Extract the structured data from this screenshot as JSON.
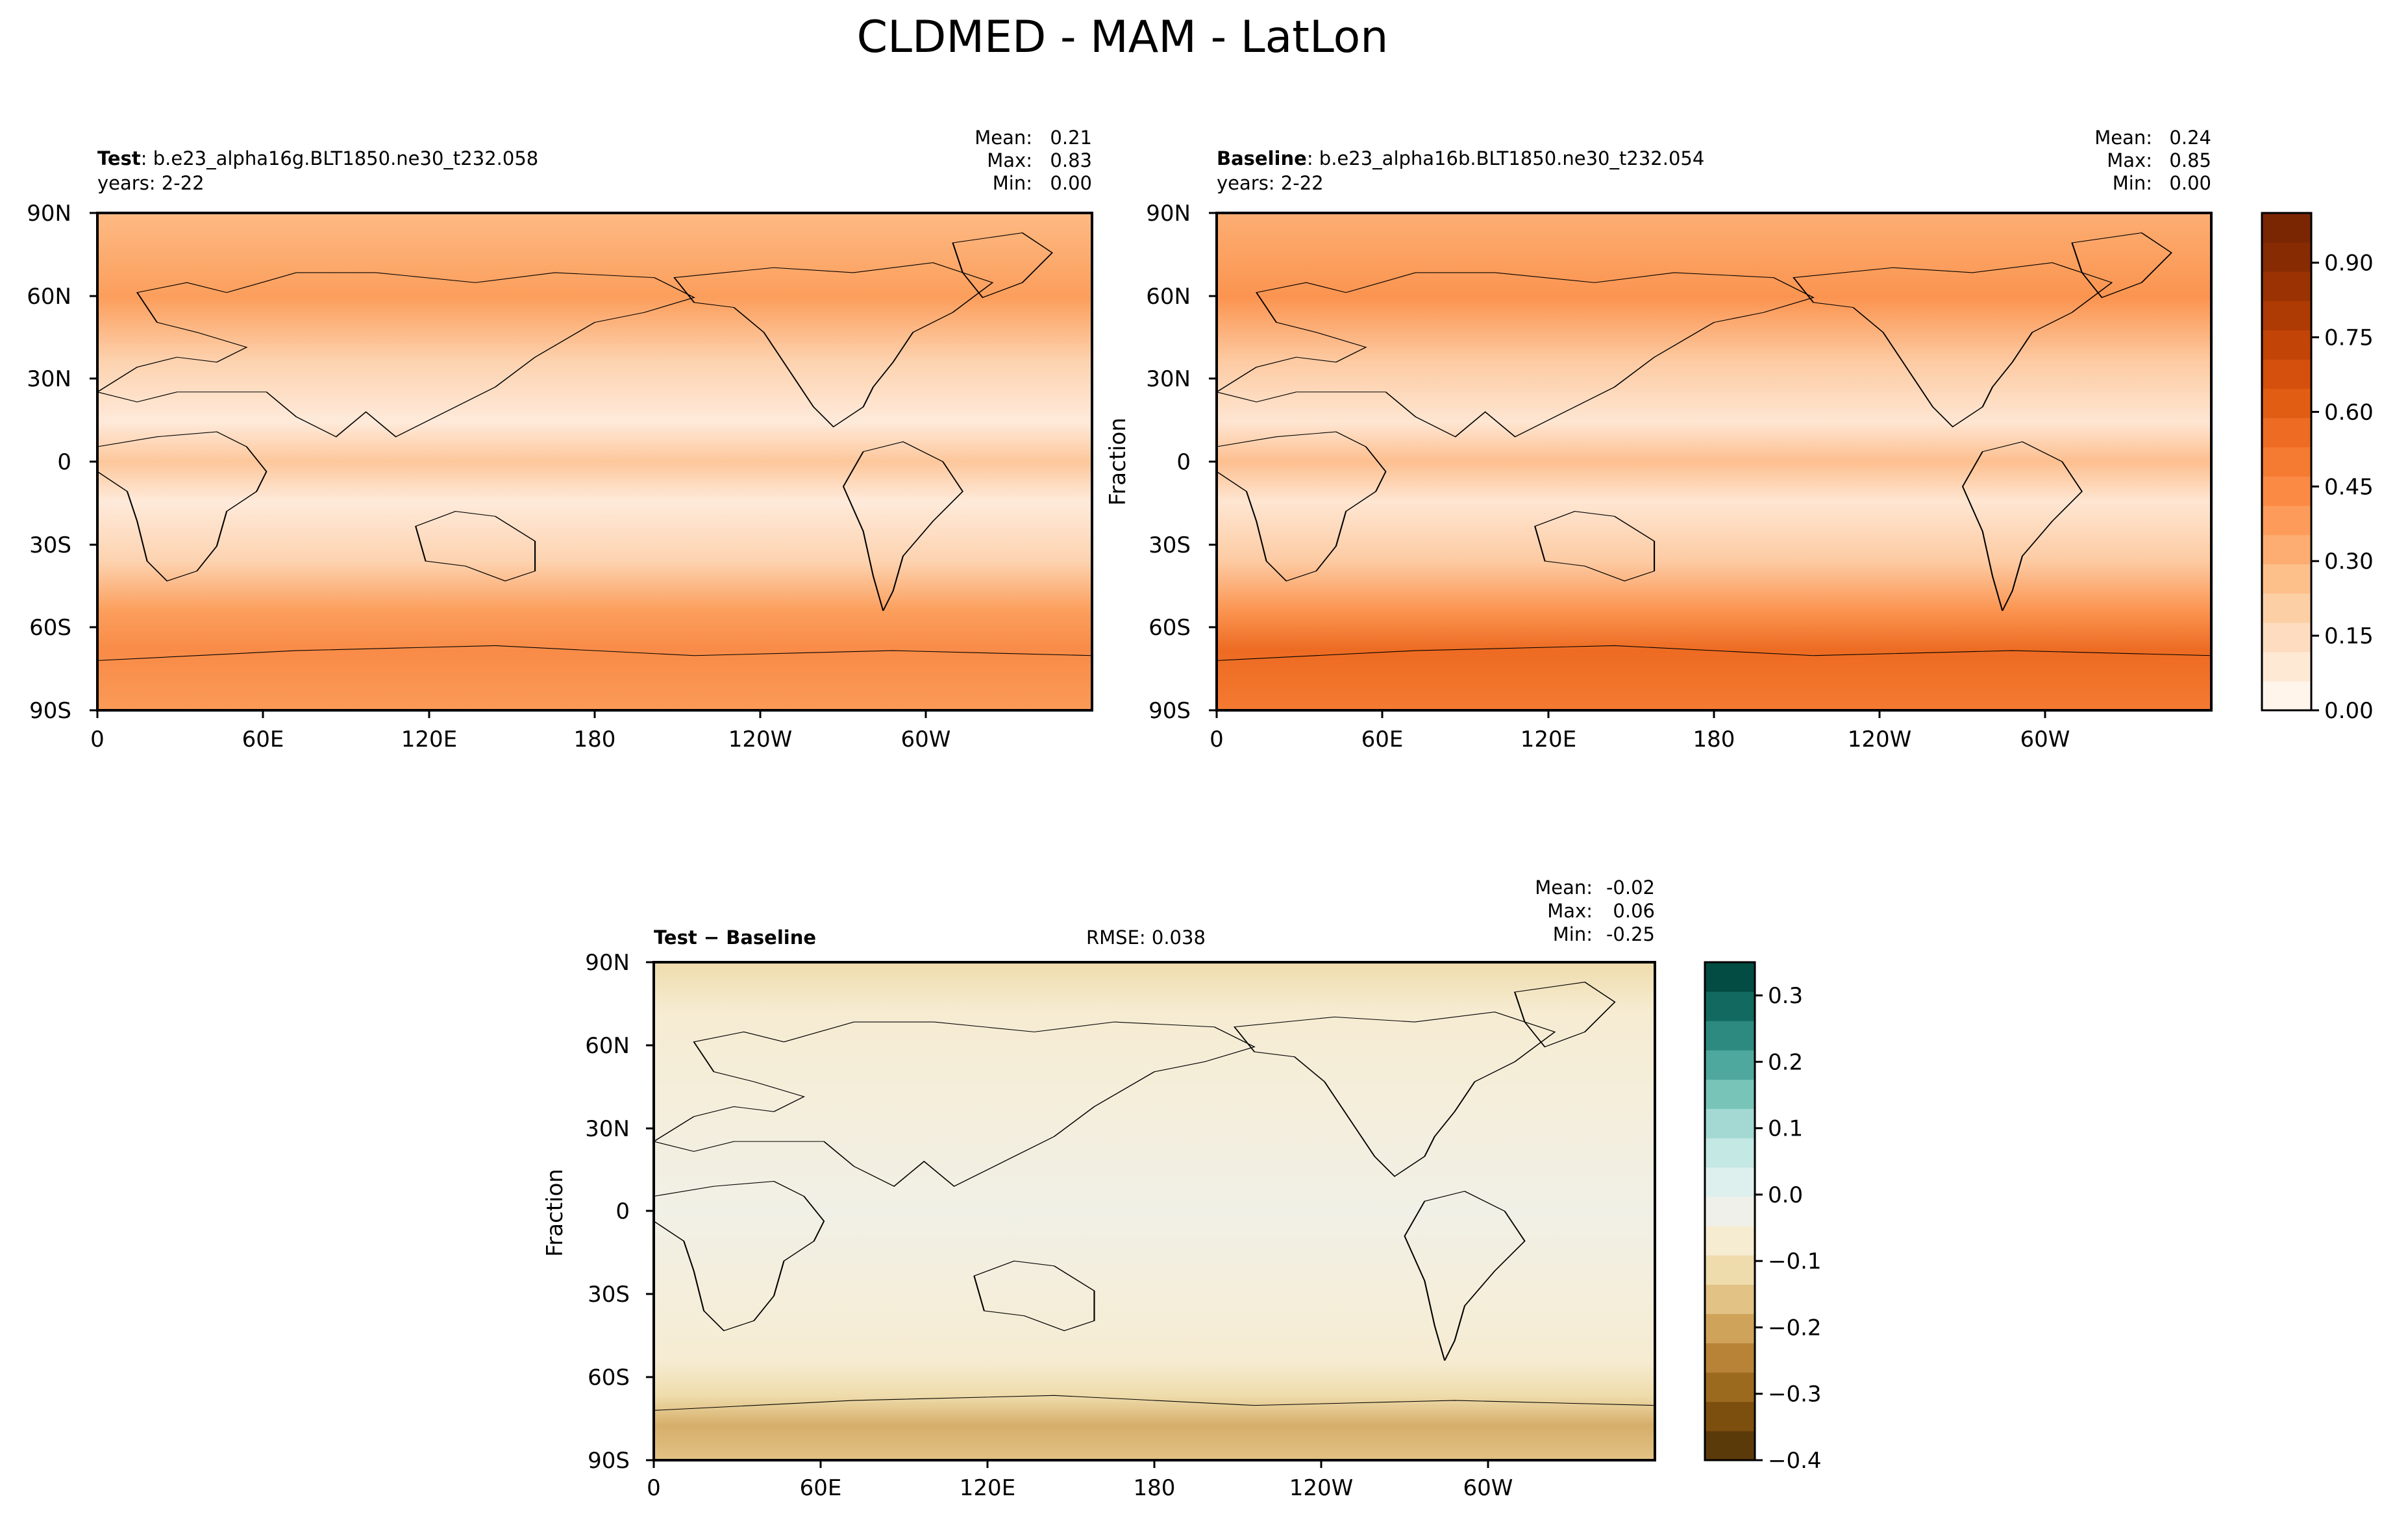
{
  "title": "CLDMED - MAM - LatLon",
  "x_ticks": [
    "0",
    "60E",
    "120E",
    "180",
    "120W",
    "60W"
  ],
  "y_ticks": [
    "90N",
    "60N",
    "30N",
    "0",
    "30S",
    "60S",
    "90S"
  ],
  "panels": {
    "test": {
      "label_bold": "Test",
      "label_rest": ": b.e23_alpha16g.BLT1850.ne30_t232.058",
      "years": "years: 2-22",
      "stats": [
        {
          "label": "Mean:",
          "value": "0.21"
        },
        {
          "label": "Max:",
          "value": "0.83"
        },
        {
          "label": "Min:",
          "value": "0.00"
        }
      ]
    },
    "baseline": {
      "label_bold": "Baseline",
      "label_rest": ": b.e23_alpha16b.BLT1850.ne30_t232.054",
      "years": "years: 2-22",
      "ylabel": "Fraction",
      "stats": [
        {
          "label": "Mean:",
          "value": "0.24"
        },
        {
          "label": "Max:",
          "value": "0.85"
        },
        {
          "label": "Min:",
          "value": "0.00"
        }
      ]
    },
    "diff": {
      "label_bold": "Test − Baseline",
      "rmse": "RMSE: 0.038",
      "ylabel": "Fraction",
      "stats": [
        {
          "label": "Mean:",
          "value": "-0.02"
        },
        {
          "label": "Max:",
          "value": "0.06"
        },
        {
          "label": "Min:",
          "value": "-0.25"
        }
      ]
    }
  },
  "colorbars": {
    "top": {
      "ticks": [
        "0.00",
        "0.15",
        "0.30",
        "0.45",
        "0.60",
        "0.75",
        "0.90"
      ],
      "tick_values": [
        0,
        0.15,
        0.3,
        0.45,
        0.6,
        0.75,
        0.9
      ],
      "range": [
        0,
        1.0
      ],
      "colors": [
        "#fff5eb",
        "#fee9d4",
        "#fddcbf",
        "#fdcfa5",
        "#fdc08b",
        "#fdad72",
        "#fd9b5a",
        "#fb8a45",
        "#f57a32",
        "#ed6b22",
        "#e25d14",
        "#d4500c",
        "#c24407",
        "#ae3a04",
        "#9a3203",
        "#872b03",
        "#7a2603"
      ]
    },
    "diff": {
      "ticks": [
        "0.3",
        "0.2",
        "0.1",
        "0.0",
        "−0.1",
        "−0.2",
        "−0.3",
        "−0.4"
      ],
      "tick_values": [
        0.3,
        0.2,
        0.1,
        0.0,
        -0.1,
        -0.2,
        -0.3,
        -0.4
      ],
      "range": [
        -0.4,
        0.35
      ],
      "colors": [
        "#5b3a0a",
        "#7d4f0e",
        "#9c6a1f",
        "#b88336",
        "#cfa35a",
        "#e2c285",
        "#efdcac",
        "#f6ecd2",
        "#f0f0ea",
        "#def0ee",
        "#c4e8e4",
        "#a3d9d2",
        "#78c4b9",
        "#4fa89d",
        "#2c8a80",
        "#12695f",
        "#024c43"
      ]
    }
  }
}
